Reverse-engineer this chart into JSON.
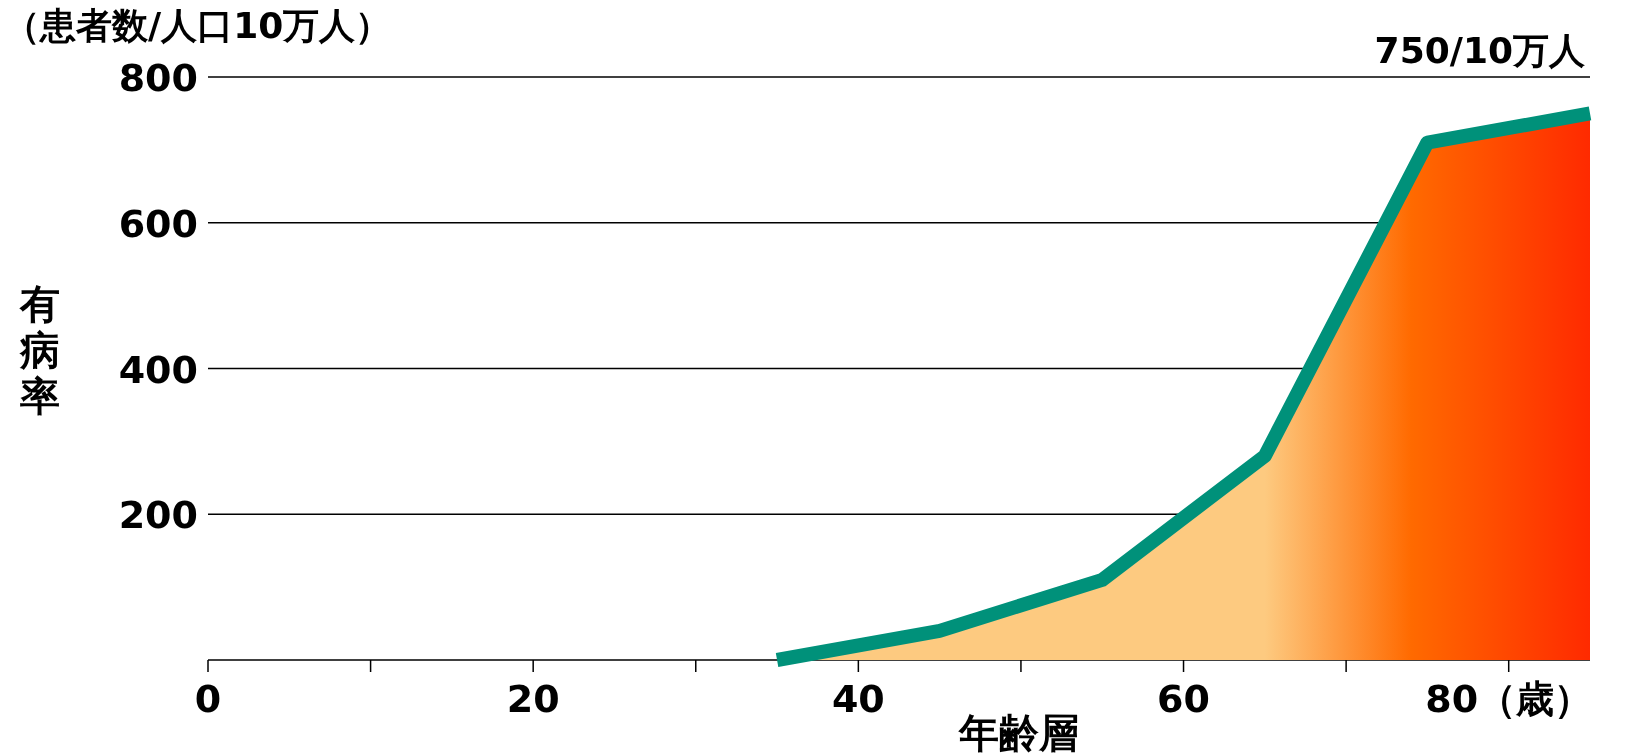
{
  "chart_data": {
    "type": "area",
    "title": "（患者数/人口10万人）",
    "xlabel": "年齢層",
    "ylabel": "有病率",
    "xlim": [
      0,
      85
    ],
    "ylim": [
      0,
      800
    ],
    "xticks": [
      0,
      {
        "value": 10,
        "label": null
      },
      20,
      {
        "value": 30,
        "label": null
      },
      40,
      {
        "value": 50,
        "label": null
      },
      60,
      {
        "value": 70,
        "label": null
      },
      {
        "value": 80,
        "label": "80（歳）"
      }
    ],
    "yticks": [
      {
        "value": 0,
        "label": null
      },
      200,
      400,
      600,
      800
    ],
    "grid": "y",
    "marker": "none",
    "line_style": "solid",
    "series": [
      {
        "color": "#00917a",
        "x": [
          35,
          45,
          55,
          65,
          75,
          85
        ],
        "values": [
          0,
          40,
          110,
          280,
          710,
          750
        ]
      }
    ],
    "annotations": [
      {
        "text": "750/10万人",
        "x": 85,
        "y": 750
      }
    ]
  }
}
